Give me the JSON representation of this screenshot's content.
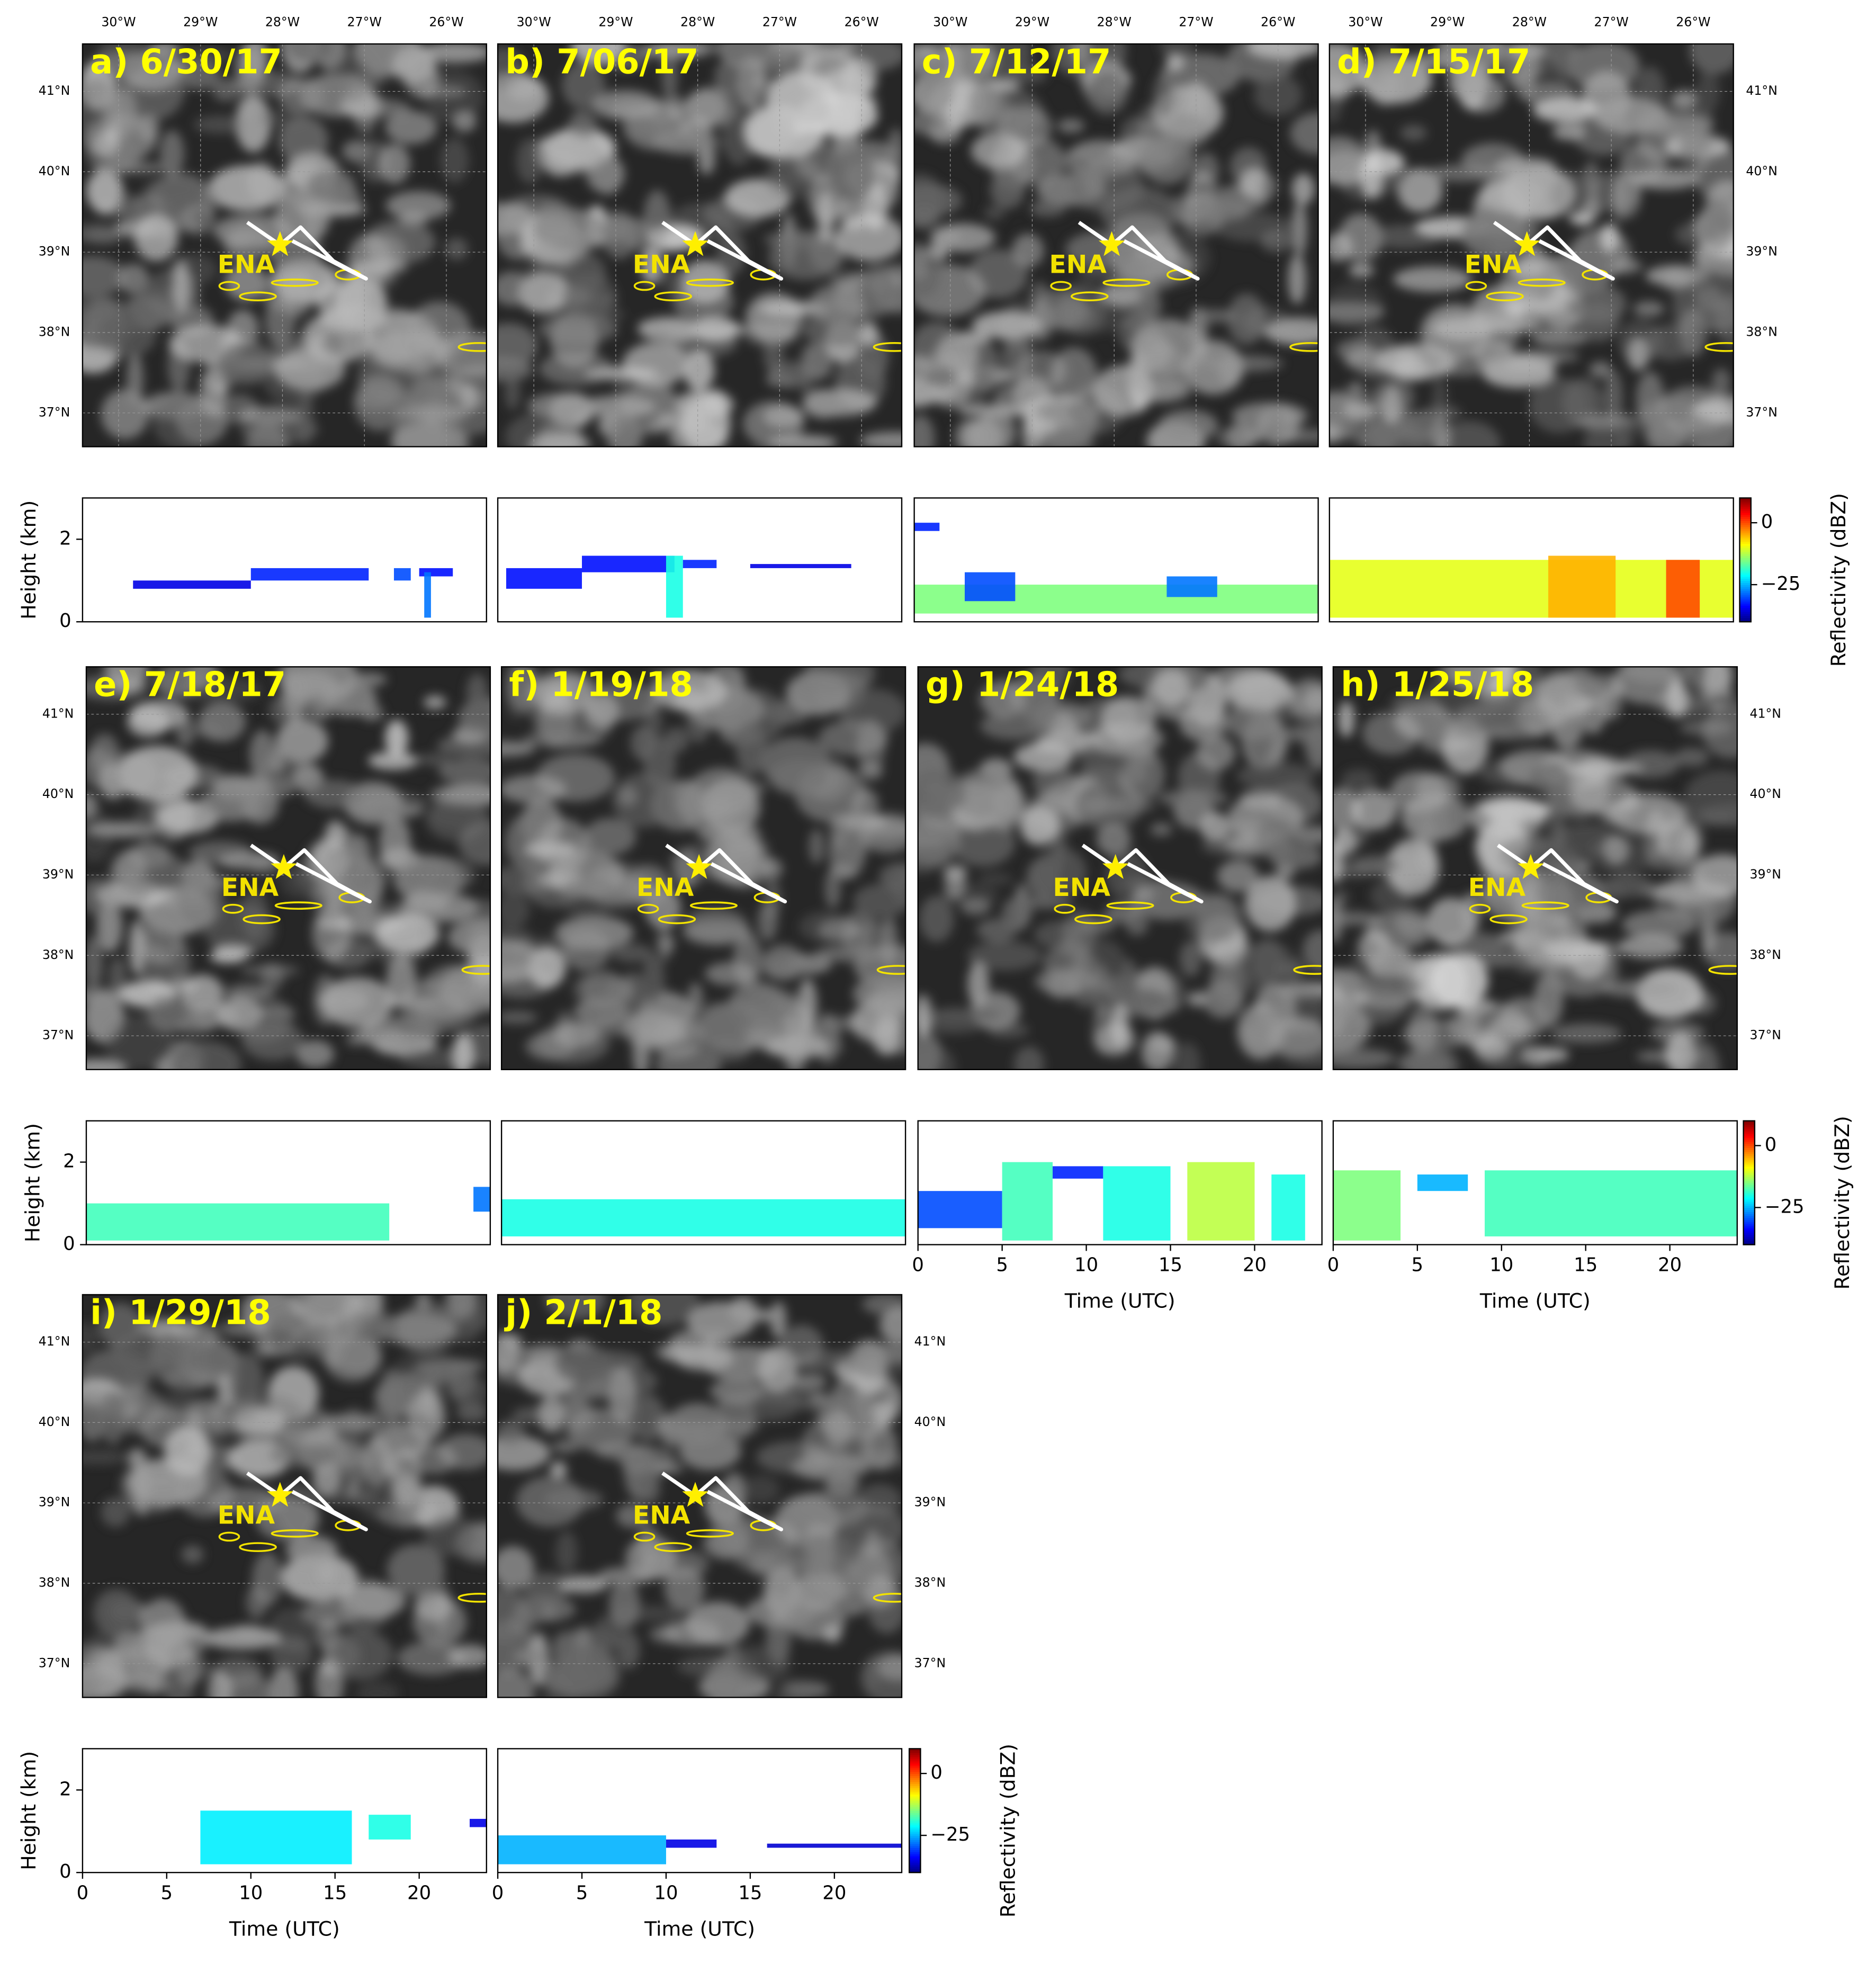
{
  "chart_data": [
    {
      "type": "map",
      "title": "a) 6/30/17",
      "site": {
        "name": "ENA",
        "lon": -28.03,
        "lat": 39.09
      },
      "xlim": [
        -30.44,
        -25.51
      ],
      "ylim": [
        36.58,
        41.59
      ],
      "xticks": [
        {
          "value": -30,
          "label": "30°W"
        },
        {
          "value": -29,
          "label": "29°W"
        },
        {
          "value": -28,
          "label": "28°W"
        },
        {
          "value": -27,
          "label": "27°W"
        },
        {
          "value": -26,
          "label": "26°W"
        }
      ],
      "yticks": [
        {
          "value": 37,
          "label": "37°N"
        },
        {
          "value": 38,
          "label": "38°N"
        },
        {
          "value": 39,
          "label": "39°N"
        },
        {
          "value": 40,
          "label": "40°N"
        },
        {
          "value": 41,
          "label": "41°N"
        }
      ]
    },
    {
      "type": "map",
      "title": "b) 7/06/17",
      "site": {
        "name": "ENA",
        "lon": -28.03,
        "lat": 39.09
      },
      "xlim": [
        -30.44,
        -25.51
      ],
      "ylim": [
        36.58,
        41.59
      ],
      "xticks": [
        {
          "value": -30,
          "label": "30°W"
        },
        {
          "value": -29,
          "label": "29°W"
        },
        {
          "value": -28,
          "label": "28°W"
        },
        {
          "value": -27,
          "label": "27°W"
        },
        {
          "value": -26,
          "label": "26°W"
        }
      ]
    },
    {
      "type": "map",
      "title": "c) 7/12/17",
      "site": {
        "name": "ENA",
        "lon": -28.03,
        "lat": 39.09
      },
      "xlim": [
        -30.44,
        -25.51
      ],
      "ylim": [
        36.58,
        41.59
      ],
      "xticks": [
        {
          "value": -30,
          "label": "30°W"
        },
        {
          "value": -29,
          "label": "29°W"
        },
        {
          "value": -28,
          "label": "28°W"
        },
        {
          "value": -27,
          "label": "27°W"
        },
        {
          "value": -26,
          "label": "26°W"
        }
      ]
    },
    {
      "type": "map",
      "title": "d) 7/15/17",
      "site": {
        "name": "ENA",
        "lon": -28.03,
        "lat": 39.09
      },
      "xlim": [
        -30.44,
        -25.51
      ],
      "ylim": [
        36.58,
        41.59
      ],
      "xticks": [
        {
          "value": -30,
          "label": "30°W"
        },
        {
          "value": -29,
          "label": "29°W"
        },
        {
          "value": -28,
          "label": "28°W"
        },
        {
          "value": -27,
          "label": "27°W"
        },
        {
          "value": -26,
          "label": "26°W"
        }
      ],
      "yticks": [
        {
          "value": 37,
          "label": "37°N"
        },
        {
          "value": 38,
          "label": "38°N"
        },
        {
          "value": 39,
          "label": "39°N"
        },
        {
          "value": 40,
          "label": "40°N"
        },
        {
          "value": 41,
          "label": "41°N"
        }
      ]
    },
    {
      "type": "map",
      "title": "e) 7/18/17",
      "site": {
        "name": "ENA",
        "lon": -28.03,
        "lat": 39.09
      },
      "xlim": [
        -30.44,
        -25.51
      ],
      "ylim": [
        36.58,
        41.59
      ],
      "yticks": [
        {
          "value": 37,
          "label": "37°N"
        },
        {
          "value": 38,
          "label": "38°N"
        },
        {
          "value": 39,
          "label": "39°N"
        },
        {
          "value": 40,
          "label": "40°N"
        },
        {
          "value": 41,
          "label": "41°N"
        }
      ]
    },
    {
      "type": "map",
      "title": "f) 1/19/18",
      "site": {
        "name": "ENA",
        "lon": -28.03,
        "lat": 39.09
      },
      "xlim": [
        -30.44,
        -25.51
      ],
      "ylim": [
        36.58,
        41.59
      ]
    },
    {
      "type": "map",
      "title": "g) 1/24/18",
      "site": {
        "name": "ENA",
        "lon": -28.03,
        "lat": 39.09
      },
      "xlim": [
        -30.44,
        -25.51
      ],
      "ylim": [
        36.58,
        41.59
      ]
    },
    {
      "type": "map",
      "title": "h) 1/25/18",
      "site": {
        "name": "ENA",
        "lon": -28.03,
        "lat": 39.09
      },
      "xlim": [
        -30.44,
        -25.51
      ],
      "ylim": [
        36.58,
        41.59
      ],
      "yticks": [
        {
          "value": 37,
          "label": "37°N"
        },
        {
          "value": 38,
          "label": "38°N"
        },
        {
          "value": 39,
          "label": "39°N"
        },
        {
          "value": 40,
          "label": "40°N"
        },
        {
          "value": 41,
          "label": "41°N"
        }
      ]
    },
    {
      "type": "map",
      "title": "i) 1/29/18",
      "site": {
        "name": "ENA",
        "lon": -28.03,
        "lat": 39.09
      },
      "xlim": [
        -30.44,
        -25.51
      ],
      "ylim": [
        36.58,
        41.59
      ],
      "yticks": [
        {
          "value": 37,
          "label": "37°N"
        },
        {
          "value": 38,
          "label": "38°N"
        },
        {
          "value": 39,
          "label": "39°N"
        },
        {
          "value": 40,
          "label": "40°N"
        },
        {
          "value": 41,
          "label": "41°N"
        }
      ]
    },
    {
      "type": "map",
      "title": "j) 2/1/18",
      "site": {
        "name": "ENA",
        "lon": -28.03,
        "lat": 39.09
      },
      "xlim": [
        -30.44,
        -25.51
      ],
      "ylim": [
        36.58,
        41.59
      ],
      "yticks": [
        {
          "value": 37,
          "label": "37°N"
        },
        {
          "value": 38,
          "label": "38°N"
        },
        {
          "value": 39,
          "label": "39°N"
        },
        {
          "value": 40,
          "label": "40°N"
        },
        {
          "value": 41,
          "label": "41°N"
        }
      ]
    },
    {
      "type": "time-height",
      "ylabel": "Height (km)",
      "xlim": [
        0,
        24
      ],
      "ylim": [
        0,
        3
      ],
      "yticks": [
        0,
        2
      ],
      "echoes": [
        [
          3,
          10,
          0.8,
          1.0,
          -35
        ],
        [
          10,
          17,
          1.0,
          1.3,
          -32
        ],
        [
          18.5,
          19.5,
          1.0,
          1.3,
          -30
        ],
        [
          20,
          22,
          1.1,
          1.3,
          -33
        ],
        [
          20.3,
          20.7,
          0.1,
          1.2,
          -28
        ]
      ]
    },
    {
      "type": "time-height",
      "xlim": [
        0,
        24
      ],
      "ylim": [
        0,
        3
      ],
      "echoes": [
        [
          0.5,
          5,
          0.8,
          1.3,
          -33
        ],
        [
          5,
          10.5,
          1.2,
          1.6,
          -33
        ],
        [
          10,
          11,
          0.1,
          1.6,
          -20
        ],
        [
          11,
          13,
          1.3,
          1.5,
          -32
        ],
        [
          15,
          21,
          1.3,
          1.4,
          -35
        ]
      ]
    },
    {
      "type": "time-height",
      "xlim": [
        0,
        24
      ],
      "ylim": [
        0,
        3
      ],
      "echoes": [
        [
          0,
          1.5,
          2.2,
          2.4,
          -32
        ],
        [
          0,
          24,
          0.2,
          0.9,
          -15
        ],
        [
          3,
          6,
          0.5,
          1.2,
          -30
        ],
        [
          15,
          18,
          0.6,
          1.1,
          -28
        ]
      ]
    },
    {
      "type": "time-height",
      "xlim": [
        0,
        24
      ],
      "ylim": [
        0,
        3
      ],
      "echoes": [
        [
          0,
          24,
          0.1,
          1.5,
          -10
        ],
        [
          13,
          17,
          0.1,
          1.6,
          -5
        ],
        [
          20,
          22,
          0.1,
          1.5,
          0
        ]
      ]
    },
    {
      "type": "time-height",
      "ylabel": "Height (km)",
      "xlim": [
        0,
        24
      ],
      "ylim": [
        0,
        3
      ],
      "yticks": [
        0,
        2
      ],
      "echoes": [
        [
          0,
          18,
          0.1,
          1.0,
          -18
        ],
        [
          23,
          24,
          0.8,
          1.4,
          -28
        ]
      ]
    },
    {
      "type": "time-height",
      "xlim": [
        0,
        24
      ],
      "ylim": [
        0,
        3
      ],
      "echoes": [
        [
          0,
          24,
          0.2,
          1.1,
          -20
        ]
      ]
    },
    {
      "type": "time-height",
      "xlabel": "Time (UTC)",
      "xlim": [
        0,
        24
      ],
      "ylim": [
        0,
        3
      ],
      "xticks": [
        0,
        5,
        10,
        15,
        20
      ],
      "echoes": [
        [
          0,
          5,
          0.4,
          1.3,
          -30
        ],
        [
          5,
          8,
          0.1,
          2.0,
          -18
        ],
        [
          8,
          11,
          1.6,
          1.9,
          -32
        ],
        [
          11,
          15,
          0.1,
          1.9,
          -20
        ],
        [
          16,
          20,
          0.1,
          2.0,
          -12
        ],
        [
          21,
          23,
          0.1,
          1.7,
          -20
        ]
      ]
    },
    {
      "type": "time-height",
      "xlabel": "Time (UTC)",
      "xlim": [
        0,
        24
      ],
      "ylim": [
        0,
        3
      ],
      "xticks": [
        0,
        5,
        10,
        15,
        20
      ],
      "echoes": [
        [
          0,
          4,
          0.1,
          1.8,
          -15
        ],
        [
          5,
          8,
          1.3,
          1.7,
          -25
        ],
        [
          9,
          24,
          0.2,
          1.8,
          -18
        ]
      ]
    },
    {
      "type": "time-height",
      "ylabel": "Height (km)",
      "xlabel": "Time (UTC)",
      "xlim": [
        0,
        24
      ],
      "ylim": [
        0,
        3
      ],
      "yticks": [
        0,
        2
      ],
      "xticks": [
        0,
        5,
        10,
        15,
        20
      ],
      "echoes": [
        [
          7,
          16,
          0.2,
          1.5,
          -22
        ],
        [
          17,
          19.5,
          0.8,
          1.4,
          -20
        ],
        [
          23,
          24,
          1.1,
          1.3,
          -35
        ]
      ]
    },
    {
      "type": "time-height",
      "xlabel": "Time (UTC)",
      "xlim": [
        0,
        24
      ],
      "ylim": [
        0,
        3
      ],
      "xticks": [
        0,
        5,
        10,
        15,
        20
      ],
      "echoes": [
        [
          0,
          10,
          0.2,
          0.9,
          -25
        ],
        [
          10,
          13,
          0.6,
          0.8,
          -35
        ],
        [
          16,
          24,
          0.6,
          0.7,
          -36
        ]
      ]
    },
    {
      "type": "colorbar",
      "label": "Reflectivity (dBZ)",
      "clim": [
        -40,
        10
      ],
      "ticks": [
        0,
        {
          "value": -25,
          "label": "−25"
        }
      ]
    },
    {
      "type": "colorbar",
      "label": "Reflectivity (dBZ)",
      "clim": [
        -40,
        10
      ],
      "ticks": [
        0,
        {
          "value": -25,
          "label": "−25"
        }
      ]
    },
    {
      "type": "colorbar",
      "label": "Reflectivity (dBZ)",
      "clim": [
        -40,
        10
      ],
      "ticks": [
        0,
        {
          "value": -25,
          "label": "−25"
        }
      ]
    }
  ]
}
